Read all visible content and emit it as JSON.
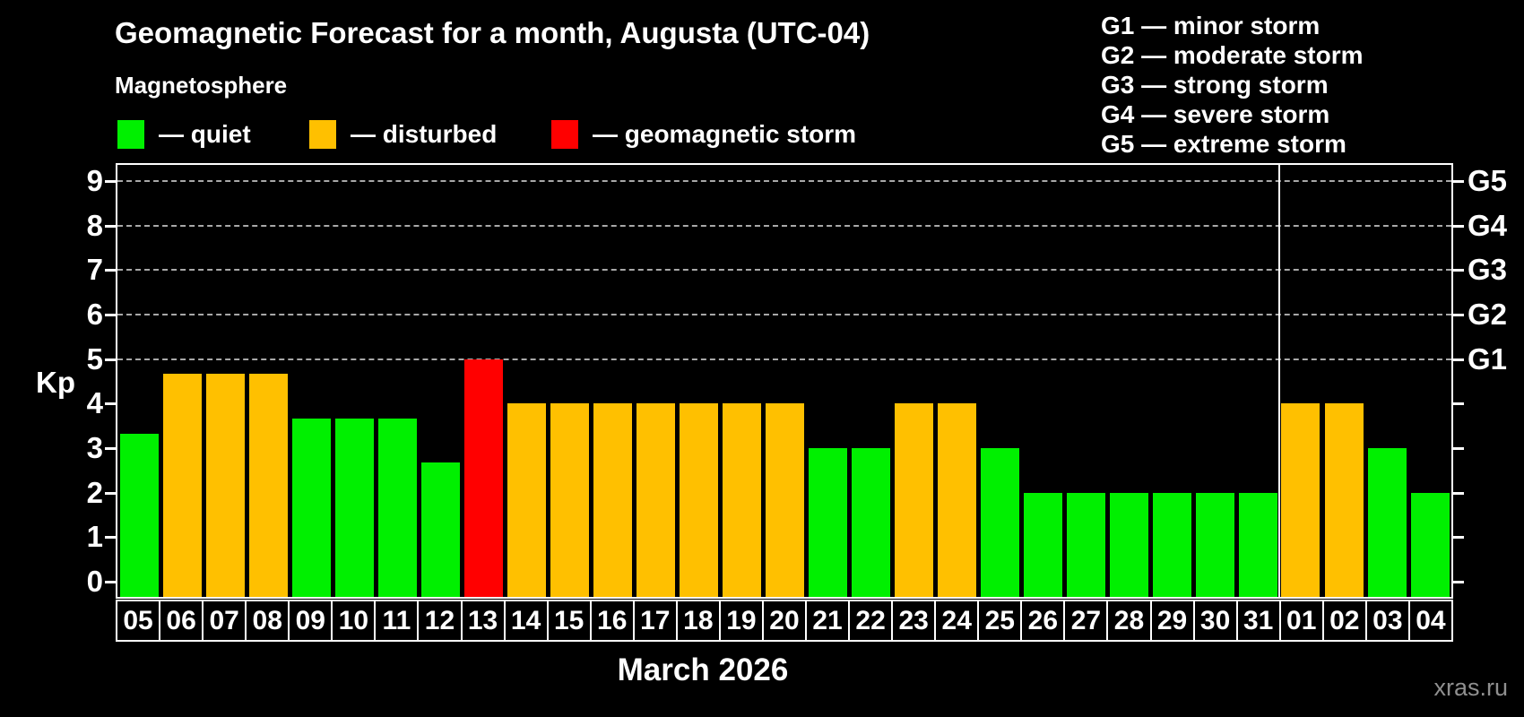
{
  "page": {
    "background": "#000000",
    "watermark": "xras.ru"
  },
  "header": {
    "title": "Geomagnetic Forecast for a month, Augusta (UTC-04)",
    "legend_heading": "Magnetosphere"
  },
  "legend": {
    "items": [
      {
        "name": "quiet",
        "label": "— quiet",
        "color": "#00f000"
      },
      {
        "name": "disturbed",
        "label": "— disturbed",
        "color": "#ffc000"
      },
      {
        "name": "storm",
        "label": "— geomagnetic storm",
        "color": "#ff0000"
      }
    ]
  },
  "storm_scale": {
    "lines": [
      "G1 — minor storm",
      "G2 — moderate storm",
      "G3 — strong storm",
      "G4 — severe storm",
      "G5 — extreme storm"
    ]
  },
  "chart_data": {
    "type": "bar",
    "title": "Geomagnetic Forecast for a month, Augusta (UTC-04)",
    "xlabel": "March 2026",
    "ylabel": "Kp",
    "ylim": [
      -0.34,
      9.36
    ],
    "yticks": [
      0,
      1,
      2,
      3,
      4,
      5,
      6,
      7,
      8,
      9
    ],
    "gridlines_at": [
      5,
      6,
      7,
      8,
      9
    ],
    "grid_style": "dashed horizontal lines at storm levels only",
    "legend_position": "top-left",
    "right_axis": {
      "labels": [
        {
          "value": 5,
          "label": "G1"
        },
        {
          "value": 6,
          "label": "G2"
        },
        {
          "value": 7,
          "label": "G3"
        },
        {
          "value": 8,
          "label": "G4"
        },
        {
          "value": 9,
          "label": "G5"
        }
      ]
    },
    "status_colors": {
      "quiet": "#00f000",
      "disturbed": "#ffc000",
      "storm": "#ff0000"
    },
    "month_separator_after_index": 26,
    "bars": [
      {
        "day": "05",
        "kp": 3.33,
        "status": "quiet"
      },
      {
        "day": "06",
        "kp": 4.67,
        "status": "disturbed"
      },
      {
        "day": "07",
        "kp": 4.67,
        "status": "disturbed"
      },
      {
        "day": "08",
        "kp": 4.67,
        "status": "disturbed"
      },
      {
        "day": "09",
        "kp": 3.67,
        "status": "quiet"
      },
      {
        "day": "10",
        "kp": 3.67,
        "status": "quiet"
      },
      {
        "day": "11",
        "kp": 3.67,
        "status": "quiet"
      },
      {
        "day": "12",
        "kp": 2.67,
        "status": "quiet"
      },
      {
        "day": "13",
        "kp": 5.0,
        "status": "storm"
      },
      {
        "day": "14",
        "kp": 4.0,
        "status": "disturbed"
      },
      {
        "day": "15",
        "kp": 4.0,
        "status": "disturbed"
      },
      {
        "day": "16",
        "kp": 4.0,
        "status": "disturbed"
      },
      {
        "day": "17",
        "kp": 4.0,
        "status": "disturbed"
      },
      {
        "day": "18",
        "kp": 4.0,
        "status": "disturbed"
      },
      {
        "day": "19",
        "kp": 4.0,
        "status": "disturbed"
      },
      {
        "day": "20",
        "kp": 4.0,
        "status": "disturbed"
      },
      {
        "day": "21",
        "kp": 3.0,
        "status": "quiet"
      },
      {
        "day": "22",
        "kp": 3.0,
        "status": "quiet"
      },
      {
        "day": "23",
        "kp": 4.0,
        "status": "disturbed"
      },
      {
        "day": "24",
        "kp": 4.0,
        "status": "disturbed"
      },
      {
        "day": "25",
        "kp": 3.0,
        "status": "quiet"
      },
      {
        "day": "26",
        "kp": 2.0,
        "status": "quiet"
      },
      {
        "day": "27",
        "kp": 2.0,
        "status": "quiet"
      },
      {
        "day": "28",
        "kp": 2.0,
        "status": "quiet"
      },
      {
        "day": "29",
        "kp": 2.0,
        "status": "quiet"
      },
      {
        "day": "30",
        "kp": 2.0,
        "status": "quiet"
      },
      {
        "day": "31",
        "kp": 2.0,
        "status": "quiet"
      },
      {
        "day": "01",
        "kp": 4.0,
        "status": "disturbed"
      },
      {
        "day": "02",
        "kp": 4.0,
        "status": "disturbed"
      },
      {
        "day": "03",
        "kp": 3.0,
        "status": "quiet"
      },
      {
        "day": "04",
        "kp": 2.0,
        "status": "quiet"
      }
    ]
  }
}
